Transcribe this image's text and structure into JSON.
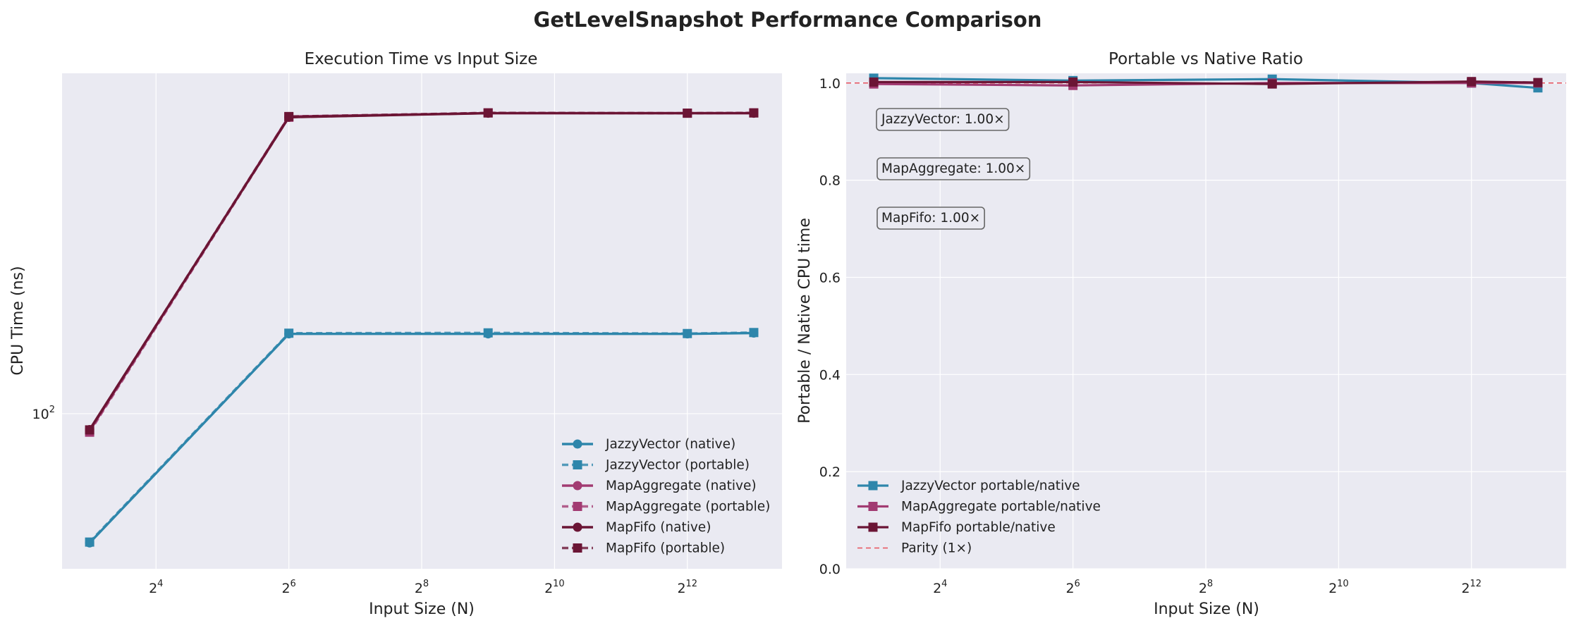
{
  "figure": {
    "suptitle": "GetLevelSnapshot Performance Comparison"
  },
  "colors": {
    "jazzy": "#2E86AB",
    "mapagg": "#A23B72",
    "mapfifo": "#6B1535",
    "parity": "#E8505B",
    "panel_bg": "#EAEAF2",
    "grid": "#FFFFFF"
  },
  "chart_data": [
    {
      "type": "line",
      "title": "Execution Time vs Input Size",
      "xlabel": "Input Size (N)",
      "ylabel": "CPU Time (ns)",
      "xscale": "log2",
      "yscale": "log10",
      "x": [
        8,
        64,
        512,
        4096,
        8192
      ],
      "xlim": [
        6,
        11000
      ],
      "ylim": [
        52,
        420
      ],
      "x_tick_values": [
        16,
        64,
        256,
        1024,
        4096
      ],
      "x_tick_labels": [
        {
          "base": "2",
          "exp": "4"
        },
        {
          "base": "2",
          "exp": "6"
        },
        {
          "base": "2",
          "exp": "8"
        },
        {
          "base": "2",
          "exp": "10"
        },
        {
          "base": "2",
          "exp": "12"
        }
      ],
      "y_tick_values": [
        100
      ],
      "y_tick_labels": [
        {
          "base": "10",
          "exp": "2"
        }
      ],
      "legend_position": "lower-right",
      "grid": true,
      "series": [
        {
          "name": "JazzyVector (native)",
          "color_key": "jazzy",
          "marker": "circle",
          "dash": "solid",
          "values": [
            58,
            140,
            140,
            140,
            140.5
          ]
        },
        {
          "name": "JazzyVector (portable)",
          "color_key": "jazzy",
          "marker": "square",
          "dash": "dashed",
          "values": [
            58.2,
            140.4,
            140.6,
            140.2,
            140.8
          ]
        },
        {
          "name": "MapAggregate (native)",
          "color_key": "mapagg",
          "marker": "circle",
          "dash": "solid",
          "values": [
            93,
            350,
            355,
            355,
            355
          ]
        },
        {
          "name": "MapAggregate (portable)",
          "color_key": "mapagg",
          "marker": "square",
          "dash": "dashed",
          "values": [
            92.5,
            349,
            355.5,
            355,
            355.5
          ]
        },
        {
          "name": "MapFifo (native)",
          "color_key": "mapfifo",
          "marker": "circle",
          "dash": "solid",
          "values": [
            93.5,
            349,
            355,
            355,
            355
          ]
        },
        {
          "name": "MapFifo (portable)",
          "color_key": "mapfifo",
          "marker": "square",
          "dash": "dashed",
          "values": [
            93.4,
            350,
            355.4,
            355,
            355.4
          ]
        }
      ]
    },
    {
      "type": "line",
      "title": "Portable vs Native Ratio",
      "xlabel": "Input Size (N)",
      "ylabel": "Portable / Native CPU time",
      "xscale": "log2",
      "yscale": "linear",
      "x": [
        8,
        64,
        512,
        4096,
        8192
      ],
      "xlim": [
        6,
        11000
      ],
      "ylim": [
        0,
        1.02
      ],
      "x_tick_values": [
        16,
        64,
        256,
        1024,
        4096
      ],
      "x_tick_labels": [
        {
          "base": "2",
          "exp": "4"
        },
        {
          "base": "2",
          "exp": "6"
        },
        {
          "base": "2",
          "exp": "8"
        },
        {
          "base": "2",
          "exp": "10"
        },
        {
          "base": "2",
          "exp": "12"
        }
      ],
      "y_tick_values": [
        0,
        0.2,
        0.4,
        0.6,
        0.8,
        1.0
      ],
      "y_tick_labels": [
        "0.0",
        "0.2",
        "0.4",
        "0.6",
        "0.8",
        "1.0"
      ],
      "legend_position": "lower-left",
      "grid": true,
      "parity": {
        "value": 1.0,
        "label": "Parity (1×)"
      },
      "annotations": [
        "JazzyVector: 1.00×",
        "MapAggregate: 1.00×",
        "MapFifo: 1.00×"
      ],
      "series": [
        {
          "name": "JazzyVector portable/native",
          "color_key": "jazzy",
          "marker": "square",
          "values": [
            1.01,
            1.005,
            1.008,
            1.0,
            0.99
          ]
        },
        {
          "name": "MapAggregate portable/native",
          "color_key": "mapagg",
          "marker": "square",
          "values": [
            0.998,
            0.995,
            1.0,
            1.0,
            1.0
          ]
        },
        {
          "name": "MapFifo portable/native",
          "color_key": "mapfifo",
          "marker": "square",
          "values": [
            1.002,
            1.002,
            0.998,
            1.003,
            1.001
          ]
        }
      ]
    }
  ]
}
